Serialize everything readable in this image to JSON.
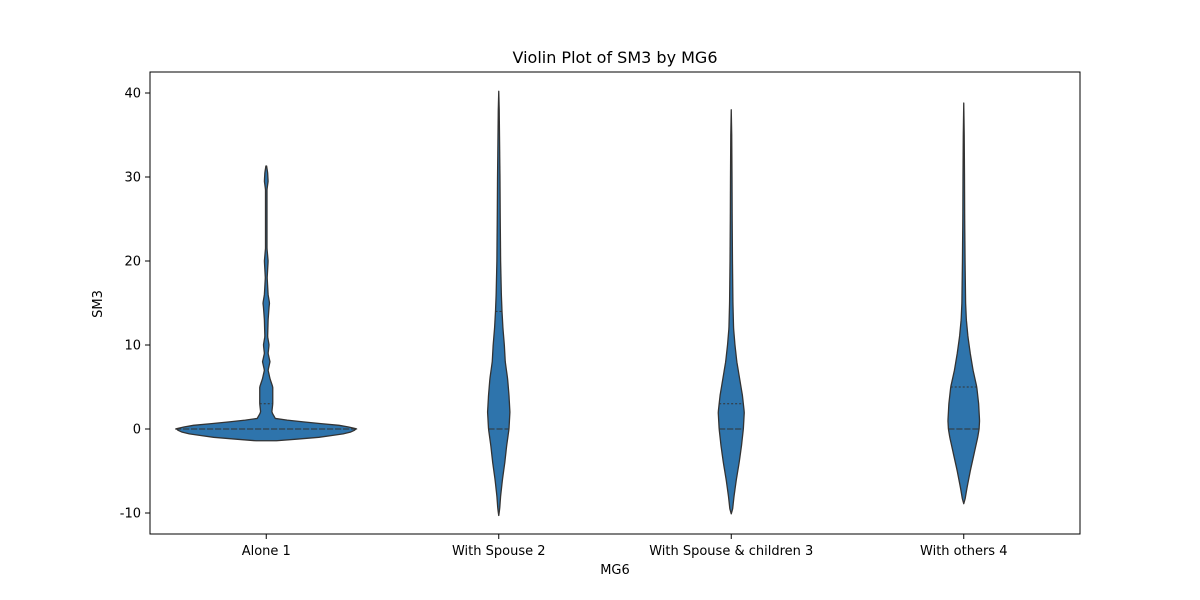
{
  "chart_data": {
    "type": "violin",
    "title": "Violin Plot of SM3 by MG6",
    "xlabel": "MG6",
    "ylabel": "SM3",
    "ylim": [
      -12.5,
      42.5
    ],
    "yticks": [
      -10,
      0,
      10,
      20,
      30,
      40
    ],
    "categories": [
      "Alone 1",
      "With Spouse 2",
      "With Spouse & children 3",
      "With others 4"
    ],
    "fill_color": "#2e74ac",
    "edge_color": "#333333",
    "grid": false,
    "legend": "none",
    "violins": [
      {
        "category": "Alone 1",
        "min": -1.4,
        "max": 31.3,
        "quartiles": [
          0,
          0,
          3
        ],
        "profile": [
          [
            -1.4,
            0.11
          ],
          [
            -1.0,
            0.56
          ],
          [
            -0.5,
            0.88
          ],
          [
            0,
            0.98
          ],
          [
            0.4,
            0.82
          ],
          [
            0.8,
            0.44
          ],
          [
            1.2,
            0.1
          ],
          [
            2.0,
            0.06
          ],
          [
            3.0,
            0.07
          ],
          [
            4.0,
            0.07
          ],
          [
            5.0,
            0.07
          ],
          [
            6.0,
            0.04
          ],
          [
            7.0,
            0.02
          ],
          [
            8.0,
            0.04
          ],
          [
            9.0,
            0.02
          ],
          [
            10.0,
            0.03
          ],
          [
            11.0,
            0.015
          ],
          [
            13.0,
            0.02
          ],
          [
            14.5,
            0.03
          ],
          [
            15.0,
            0.035
          ],
          [
            16.0,
            0.02
          ],
          [
            18.0,
            0.01
          ],
          [
            20.0,
            0.02
          ],
          [
            21.5,
            0.008
          ],
          [
            25.0,
            0.008
          ],
          [
            28.5,
            0.008
          ],
          [
            29.5,
            0.02
          ],
          [
            30.5,
            0.015
          ],
          [
            31.3,
            0.004
          ]
        ]
      },
      {
        "category": "With Spouse 2",
        "min": -10.3,
        "max": 40.2,
        "quartiles": [
          0,
          0,
          14
        ],
        "profile": [
          [
            -10.3,
            0.0
          ],
          [
            -9.5,
            0.01
          ],
          [
            -8,
            0.02
          ],
          [
            -6,
            0.04
          ],
          [
            -4,
            0.065
          ],
          [
            -2,
            0.085
          ],
          [
            0,
            0.11
          ],
          [
            2,
            0.12
          ],
          [
            4,
            0.11
          ],
          [
            6,
            0.095
          ],
          [
            8,
            0.07
          ],
          [
            10,
            0.06
          ],
          [
            12,
            0.045
          ],
          [
            14,
            0.035
          ],
          [
            16,
            0.028
          ],
          [
            18,
            0.024
          ],
          [
            20,
            0.02
          ],
          [
            25,
            0.016
          ],
          [
            30,
            0.013
          ],
          [
            35,
            0.008
          ],
          [
            38,
            0.005
          ],
          [
            40.2,
            0.0
          ]
        ]
      },
      {
        "category": "With Spouse & children 3",
        "min": -10.1,
        "max": 38.0,
        "quartiles": [
          0,
          0,
          3
        ],
        "profile": [
          [
            -10.1,
            0.0
          ],
          [
            -9.5,
            0.015
          ],
          [
            -8,
            0.03
          ],
          [
            -6,
            0.055
          ],
          [
            -4,
            0.085
          ],
          [
            -2,
            0.11
          ],
          [
            0,
            0.13
          ],
          [
            2,
            0.14
          ],
          [
            4,
            0.12
          ],
          [
            6,
            0.09
          ],
          [
            8,
            0.06
          ],
          [
            10,
            0.04
          ],
          [
            12,
            0.025
          ],
          [
            15,
            0.018
          ],
          [
            20,
            0.013
          ],
          [
            25,
            0.01
          ],
          [
            30,
            0.008
          ],
          [
            35,
            0.005
          ],
          [
            38.0,
            0.0
          ]
        ]
      },
      {
        "category": "With others 4",
        "min": -8.9,
        "max": 38.8,
        "quartiles": [
          0,
          0,
          5
        ],
        "profile": [
          [
            -8.9,
            0.0
          ],
          [
            -8.3,
            0.015
          ],
          [
            -7,
            0.035
          ],
          [
            -5,
            0.07
          ],
          [
            -3,
            0.11
          ],
          [
            -1,
            0.15
          ],
          [
            0,
            0.165
          ],
          [
            1,
            0.17
          ],
          [
            3,
            0.16
          ],
          [
            5,
            0.14
          ],
          [
            7,
            0.1
          ],
          [
            9,
            0.07
          ],
          [
            11,
            0.045
          ],
          [
            13,
            0.028
          ],
          [
            15,
            0.02
          ],
          [
            20,
            0.014
          ],
          [
            25,
            0.01
          ],
          [
            30,
            0.008
          ],
          [
            35,
            0.005
          ],
          [
            38.8,
            0.0
          ]
        ]
      }
    ]
  }
}
